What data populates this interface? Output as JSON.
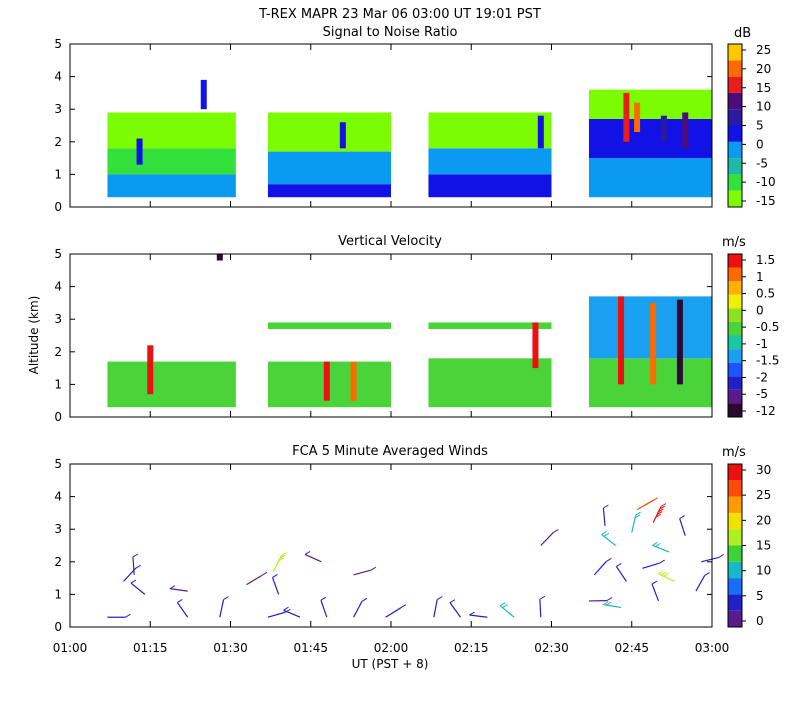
{
  "header": {
    "title": "T-REX   MAPR 23 Mar 06   03:00 UT   19:01   PST"
  },
  "colors": {
    "snr_scale": [
      "#7cfc00",
      "#33e03c",
      "#22b8a8",
      "#0a9af2",
      "#1212e6",
      "#2a1aa0",
      "#4c0d7a",
      "#e81e1e",
      "#ff6a00",
      "#ffc800"
    ],
    "vel_scale": [
      "#2a0a30",
      "#5a1a8c",
      "#2020c8",
      "#1a55ff",
      "#1aa0f0",
      "#18c8a0",
      "#4ad43a",
      "#8ee020",
      "#f2f000",
      "#ffb000",
      "#ff6a00",
      "#ee1010"
    ],
    "wind_scale": [
      "#5a1a8c",
      "#2020c8",
      "#1a6cff",
      "#18b8c8",
      "#3ad43a",
      "#aef020",
      "#f2e000",
      "#ff9a00",
      "#ff4a00",
      "#ee1010"
    ]
  },
  "axes": {
    "x_ticks": [
      "01:00",
      "01:15",
      "01:30",
      "01:45",
      "02:00",
      "02:15",
      "02:30",
      "02:45",
      "03:00"
    ],
    "x_label": "UT  (PST + 8)",
    "y_ticks": [
      "0",
      "1",
      "2",
      "3",
      "4",
      "5"
    ],
    "y_label": "Altitude (km)"
  },
  "chart_data": [
    {
      "type": "heatmap",
      "title": "Signal to Noise Ratio",
      "xlim": [
        "01:00",
        "03:00"
      ],
      "ylim": [
        0,
        5
      ],
      "colorbar": {
        "unit": "dB",
        "labels": [
          "25",
          "20",
          "15",
          "10",
          "5",
          "0",
          "-5",
          "-10",
          "-15"
        ]
      },
      "segments": [
        {
          "start": "01:07",
          "end": "01:31"
        },
        {
          "start": "01:37",
          "end": "02:00"
        },
        {
          "start": "02:07",
          "end": "02:30"
        },
        {
          "start": "02:37",
          "end": "03:00"
        }
      ],
      "layers": [
        {
          "seg": 0,
          "alt": [
            0.3,
            1.0
          ],
          "level": 3
        },
        {
          "seg": 0,
          "alt": [
            1.0,
            1.8
          ],
          "level": 1
        },
        {
          "seg": 0,
          "alt": [
            1.8,
            2.9
          ],
          "level": 0
        },
        {
          "seg": 1,
          "alt": [
            0.3,
            0.7
          ],
          "level": 4
        },
        {
          "seg": 1,
          "alt": [
            0.7,
            1.7
          ],
          "level": 3
        },
        {
          "seg": 1,
          "alt": [
            1.7,
            2.9
          ],
          "level": 0
        },
        {
          "seg": 2,
          "alt": [
            0.3,
            1.0
          ],
          "level": 4
        },
        {
          "seg": 2,
          "alt": [
            1.0,
            1.8
          ],
          "level": 3
        },
        {
          "seg": 2,
          "alt": [
            1.8,
            2.9
          ],
          "level": 0
        },
        {
          "seg": 3,
          "alt": [
            0.3,
            1.5
          ],
          "level": 3
        },
        {
          "seg": 3,
          "alt": [
            1.5,
            2.7
          ],
          "level": 4
        },
        {
          "seg": 3,
          "alt": [
            2.7,
            3.6
          ],
          "level": 0
        }
      ],
      "features": [
        {
          "time": "01:13",
          "alt": [
            1.3,
            2.1
          ],
          "level": 4
        },
        {
          "time": "01:25",
          "alt": [
            3.0,
            3.9
          ],
          "level": 4
        },
        {
          "time": "01:51",
          "alt": [
            1.8,
            2.6
          ],
          "level": 4
        },
        {
          "time": "02:28",
          "alt": [
            1.8,
            2.8
          ],
          "level": 4
        },
        {
          "time": "02:44",
          "alt": [
            2.0,
            3.5
          ],
          "level": 7
        },
        {
          "time": "02:46",
          "alt": [
            2.3,
            3.2
          ],
          "level": 8
        },
        {
          "time": "02:51",
          "alt": [
            2.0,
            2.8
          ],
          "level": 5
        },
        {
          "time": "02:55",
          "alt": [
            1.8,
            2.9
          ],
          "level": 6
        }
      ]
    },
    {
      "type": "heatmap",
      "title": "Vertical Velocity",
      "xlim": [
        "01:00",
        "03:00"
      ],
      "ylim": [
        0,
        5
      ],
      "colorbar": {
        "unit": "m/s",
        "labels": [
          "1.5",
          "1",
          "0.5",
          "0",
          "-0.5",
          "-1",
          "-1.5",
          "-2",
          "-5",
          "-12"
        ]
      },
      "segments": [
        {
          "start": "01:07",
          "end": "01:31"
        },
        {
          "start": "01:37",
          "end": "02:00"
        },
        {
          "start": "02:07",
          "end": "02:30"
        },
        {
          "start": "02:37",
          "end": "03:00"
        }
      ],
      "layers": [
        {
          "seg": 0,
          "alt": [
            0.3,
            1.7
          ],
          "level": 6
        },
        {
          "seg": 1,
          "alt": [
            0.3,
            1.7
          ],
          "level": 6
        },
        {
          "seg": 1,
          "alt": [
            2.7,
            2.9
          ],
          "level": 6
        },
        {
          "seg": 2,
          "alt": [
            0.3,
            1.8
          ],
          "level": 6
        },
        {
          "seg": 2,
          "alt": [
            2.7,
            2.9
          ],
          "level": 6
        },
        {
          "seg": 3,
          "alt": [
            0.3,
            1.8
          ],
          "level": 6
        },
        {
          "seg": 3,
          "alt": [
            1.8,
            3.7
          ],
          "level": 4
        }
      ],
      "features": [
        {
          "time": "01:15",
          "alt": [
            0.7,
            2.2
          ],
          "level": 11
        },
        {
          "time": "01:28",
          "alt": [
            4.8,
            5.0
          ],
          "level": 0
        },
        {
          "time": "01:48",
          "alt": [
            0.5,
            1.7
          ],
          "level": 11
        },
        {
          "time": "01:53",
          "alt": [
            0.5,
            1.7
          ],
          "level": 10
        },
        {
          "time": "02:27",
          "alt": [
            1.5,
            2.9
          ],
          "level": 11
        },
        {
          "time": "02:43",
          "alt": [
            1.0,
            3.7
          ],
          "level": 11
        },
        {
          "time": "02:49",
          "alt": [
            1.0,
            3.5
          ],
          "level": 10
        },
        {
          "time": "02:54",
          "alt": [
            1.0,
            3.6
          ],
          "level": 0
        }
      ]
    },
    {
      "type": "scatter",
      "title": "FCA 5 Minute Averaged Winds",
      "xlim": [
        "01:00",
        "03:00"
      ],
      "ylim": [
        0,
        5
      ],
      "colorbar": {
        "unit": "m/s",
        "labels": [
          "30",
          "25",
          "20",
          "15",
          "10",
          "5",
          "0"
        ]
      },
      "barbs": [
        {
          "time": "01:07",
          "alt": 0.3,
          "speed": 5
        },
        {
          "time": "01:10",
          "alt": 1.4,
          "speed": 5
        },
        {
          "time": "01:12",
          "alt": 1.6,
          "speed": 2
        },
        {
          "time": "01:14",
          "alt": 1.0,
          "speed": 5
        },
        {
          "time": "01:22",
          "alt": 1.1,
          "speed": 2
        },
        {
          "time": "01:22",
          "alt": 0.3,
          "speed": 5
        },
        {
          "time": "01:28",
          "alt": 0.3,
          "speed": 5
        },
        {
          "time": "01:33",
          "alt": 1.3,
          "speed": 2
        },
        {
          "time": "01:37",
          "alt": 0.3,
          "speed": 5
        },
        {
          "time": "01:38",
          "alt": 1.7,
          "speed": 15
        },
        {
          "time": "01:39",
          "alt": 1.0,
          "speed": 5
        },
        {
          "time": "01:43",
          "alt": 0.3,
          "speed": 5
        },
        {
          "time": "01:47",
          "alt": 2.0,
          "speed": 2
        },
        {
          "time": "01:48",
          "alt": 0.3,
          "speed": 5
        },
        {
          "time": "01:53",
          "alt": 0.3,
          "speed": 5
        },
        {
          "time": "01:53",
          "alt": 1.6,
          "speed": 2
        },
        {
          "time": "01:59",
          "alt": 0.3,
          "speed": 5
        },
        {
          "time": "02:08",
          "alt": 0.3,
          "speed": 5
        },
        {
          "time": "02:13",
          "alt": 0.3,
          "speed": 5
        },
        {
          "time": "02:18",
          "alt": 0.3,
          "speed": 5
        },
        {
          "time": "02:23",
          "alt": 0.3,
          "speed": 10
        },
        {
          "time": "02:28",
          "alt": 0.3,
          "speed": 5
        },
        {
          "time": "02:28",
          "alt": 2.5,
          "speed": 2
        },
        {
          "time": "02:37",
          "alt": 0.8,
          "speed": 2
        },
        {
          "time": "02:38",
          "alt": 1.6,
          "speed": 5
        },
        {
          "time": "02:40",
          "alt": 3.1,
          "speed": 5
        },
        {
          "time": "02:42",
          "alt": 2.5,
          "speed": 10
        },
        {
          "time": "02:43",
          "alt": 0.6,
          "speed": 10
        },
        {
          "time": "02:44",
          "alt": 1.4,
          "speed": 5
        },
        {
          "time": "02:45",
          "alt": 2.9,
          "speed": 10
        },
        {
          "time": "02:46",
          "alt": 3.6,
          "speed": 25
        },
        {
          "time": "02:47",
          "alt": 1.8,
          "speed": 5
        },
        {
          "time": "02:49",
          "alt": 3.2,
          "speed": 30
        },
        {
          "time": "02:50",
          "alt": 0.8,
          "speed": 5
        },
        {
          "time": "02:52",
          "alt": 2.3,
          "speed": 10
        },
        {
          "time": "02:53",
          "alt": 1.4,
          "speed": 15
        },
        {
          "time": "02:55",
          "alt": 2.8,
          "speed": 5
        },
        {
          "time": "02:57",
          "alt": 1.1,
          "speed": 5
        },
        {
          "time": "02:58",
          "alt": 2.0,
          "speed": 5
        }
      ]
    }
  ]
}
